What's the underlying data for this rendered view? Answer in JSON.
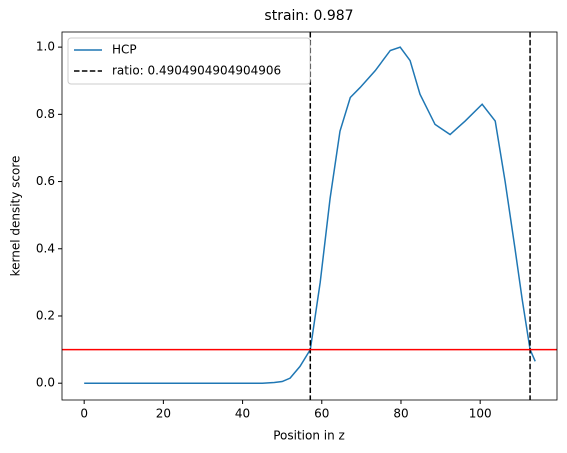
{
  "chart_data": {
    "type": "line",
    "title": "strain: 0.987",
    "xlabel": "Position in z",
    "ylabel": "kernel density score",
    "x": [
      0,
      10,
      20,
      30,
      40,
      45,
      48,
      50,
      52,
      54.5,
      57.1,
      59.6,
      62.1,
      64.6,
      67.2,
      69.7,
      73.5,
      77.3,
      79.8,
      82.3,
      84.8,
      88.6,
      92.4,
      96.2,
      100.5,
      103.8,
      106.3,
      108.8,
      110.6,
      112.6,
      113.9
    ],
    "series": [
      {
        "name": "HCP",
        "color": "#1f77b4",
        "values": [
          0,
          0,
          0,
          0,
          0,
          0,
          0.002,
          0.005,
          0.015,
          0.05,
          0.1,
          0.3,
          0.55,
          0.75,
          0.85,
          0.88,
          0.93,
          0.99,
          1.0,
          0.96,
          0.86,
          0.77,
          0.74,
          0.78,
          0.83,
          0.78,
          0.6,
          0.4,
          0.25,
          0.1,
          0.065
        ]
      }
    ],
    "vlines": {
      "name": "ratio: 0.4904904904904906",
      "color": "#000000",
      "x": [
        57.1,
        112.6
      ]
    },
    "hline": {
      "y": 0.1,
      "color": "#ff0000"
    },
    "xlim": [
      -5.6,
      119.4
    ],
    "ylim": [
      -0.05,
      1.045
    ],
    "xticks": [
      0,
      20,
      40,
      60,
      80,
      100
    ],
    "yticks": [
      {
        "value": 0,
        "label": "0.0"
      },
      {
        "value": 0.2,
        "label": "0.2"
      },
      {
        "value": 0.4,
        "label": "0.4"
      },
      {
        "value": 0.6,
        "label": "0.6"
      },
      {
        "value": 0.8,
        "label": "0.8"
      },
      {
        "value": 1,
        "label": "1.0"
      }
    ],
    "legend": "upper left",
    "grid": false
  }
}
